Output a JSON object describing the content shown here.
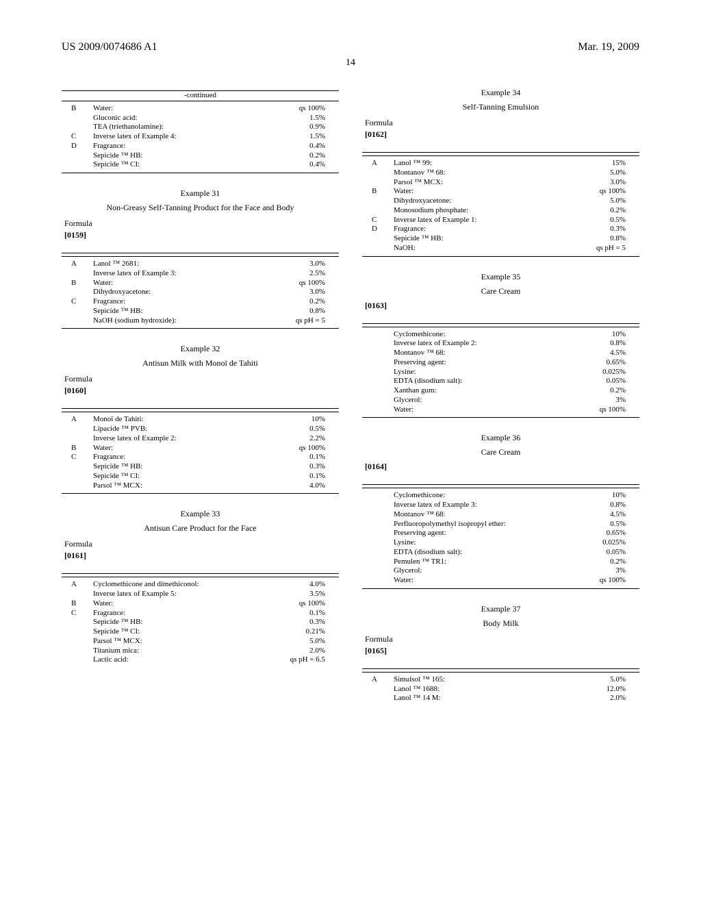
{
  "header": {
    "left": "US 2009/0074686 A1",
    "right": "Mar. 19, 2009",
    "page": "14"
  },
  "labels": {
    "formula": "Formula",
    "continued": "-continued"
  },
  "left": {
    "table_cont": {
      "rows": [
        {
          "p": "B",
          "n": "Water:",
          "v": "qs 100%"
        },
        {
          "p": "",
          "n": "Gluconic acid:",
          "v": "1.5%"
        },
        {
          "p": "",
          "n": "TEA (triethanolamine):",
          "v": "0.9%"
        },
        {
          "p": "C",
          "n": "Inverse latex of Example 4:",
          "v": "1.5%"
        },
        {
          "p": "D",
          "n": "Fragrance:",
          "v": "0.4%"
        },
        {
          "p": "",
          "n": "Sepicide ™ HB:",
          "v": "0.2%"
        },
        {
          "p": "",
          "n": "Sepicide ™ CI:",
          "v": "0.4%"
        }
      ]
    },
    "ex31": {
      "title": "Example 31",
      "sub": "Non-Greasy Self-Tanning Product for the Face and Body",
      "para": "[0159]",
      "rows": [
        {
          "p": "A",
          "n": "Lanol ™ 2681:",
          "v": "3.0%"
        },
        {
          "p": "",
          "n": "Inverse latex of Example 3:",
          "v": "2.5%"
        },
        {
          "p": "B",
          "n": "Water:",
          "v": "qs 100%"
        },
        {
          "p": "",
          "n": "Dihydroxyacetone:",
          "v": "3.0%"
        },
        {
          "p": "C",
          "n": "Fragrance:",
          "v": "0.2%"
        },
        {
          "p": "",
          "n": "Sepicide ™ HB:",
          "v": "0.8%"
        },
        {
          "p": "",
          "n": "NaOH (sodium hydroxide):",
          "v": "qs pH = 5"
        }
      ]
    },
    "ex32": {
      "title": "Example 32",
      "sub": "Antisun Milk with Monoï de Tahiti",
      "para": "[0160]",
      "rows": [
        {
          "p": "A",
          "n": "Monoï de Tahiti:",
          "v": "10%"
        },
        {
          "p": "",
          "n": "Lipacide ™ PVB:",
          "v": "0.5%"
        },
        {
          "p": "",
          "n": "Inverse latex of Example 2:",
          "v": "2.2%"
        },
        {
          "p": "B",
          "n": "Water:",
          "v": "qs 100%"
        },
        {
          "p": "C",
          "n": "Fragrance:",
          "v": "0.1%"
        },
        {
          "p": "",
          "n": "Sepicide ™ HB:",
          "v": "0.3%"
        },
        {
          "p": "",
          "n": "Sepicide ™ CI:",
          "v": "0.1%"
        },
        {
          "p": "",
          "n": "Parsol ™ MCX:",
          "v": "4.0%"
        }
      ]
    },
    "ex33": {
      "title": "Example 33",
      "sub": "Antisun Care Product for the Face",
      "para": "[0161]",
      "rows": [
        {
          "p": "A",
          "n": "Cyclomethicone and dimethiconol:",
          "v": "4.0%"
        },
        {
          "p": "",
          "n": "Inverse latex of Example 5:",
          "v": "3.5%"
        },
        {
          "p": "B",
          "n": "Water:",
          "v": "qs 100%"
        },
        {
          "p": "C",
          "n": "Fragrance:",
          "v": "0.1%"
        },
        {
          "p": "",
          "n": "Sepicide ™ HB:",
          "v": "0.3%"
        },
        {
          "p": "",
          "n": "Sepicide ™ CI:",
          "v": "0.21%"
        },
        {
          "p": "",
          "n": "Parsol ™ MCX:",
          "v": "5.0%"
        },
        {
          "p": "",
          "n": "Titanium mica:",
          "v": "2.0%"
        },
        {
          "p": "",
          "n": "Lactic acid:",
          "v": "qs pH = 6.5"
        }
      ]
    }
  },
  "right": {
    "ex34": {
      "title": "Example 34",
      "sub": "Self-Tanning Emulsion",
      "para": "[0162]",
      "rows": [
        {
          "p": "A",
          "n": "Lanol ™ 99:",
          "v": "15%"
        },
        {
          "p": "",
          "n": "Montanov ™ 68:",
          "v": "5.0%"
        },
        {
          "p": "",
          "n": "Parsol ™ MCX:",
          "v": "3.0%"
        },
        {
          "p": "B",
          "n": "Water:",
          "v": "qs 100%"
        },
        {
          "p": "",
          "n": "Dihydroxyacetone:",
          "v": "5.0%"
        },
        {
          "p": "",
          "n": "Monosodium phosphate:",
          "v": "0.2%"
        },
        {
          "p": "C",
          "n": "Inverse latex of Example 1:",
          "v": "0.5%"
        },
        {
          "p": "D",
          "n": "Fragrance:",
          "v": "0.3%"
        },
        {
          "p": "",
          "n": "Sepicide ™ HB:",
          "v": "0.8%"
        },
        {
          "p": "",
          "n": "NaOH:",
          "v": "qs pH = 5"
        }
      ]
    },
    "ex35": {
      "title": "Example 35",
      "sub": "Care Cream",
      "para": "[0163]",
      "rows": [
        {
          "p": "",
          "n": "Cyclomethicone:",
          "v": "10%"
        },
        {
          "p": "",
          "n": "Inverse latex of Example 2:",
          "v": "0.8%"
        },
        {
          "p": "",
          "n": "Montanov ™ 68:",
          "v": "4.5%"
        },
        {
          "p": "",
          "n": "Preserving agent:",
          "v": "0.65%"
        },
        {
          "p": "",
          "n": "Lysine:",
          "v": "0.025%"
        },
        {
          "p": "",
          "n": "EDTA (disodium salt):",
          "v": "0.05%"
        },
        {
          "p": "",
          "n": "Xanthan gum:",
          "v": "0.2%"
        },
        {
          "p": "",
          "n": "Glycerol:",
          "v": "3%"
        },
        {
          "p": "",
          "n": "Water:",
          "v": "qs 100%"
        }
      ]
    },
    "ex36": {
      "title": "Example 36",
      "sub": "Care Cream",
      "para": "[0164]",
      "rows": [
        {
          "p": "",
          "n": "Cyclomethicone:",
          "v": "10%"
        },
        {
          "p": "",
          "n": "Inverse latex of Example 3:",
          "v": "0.8%"
        },
        {
          "p": "",
          "n": "Montanov ™ 68:",
          "v": "4.5%"
        },
        {
          "p": "",
          "n": "Perfluoropolymethyl isopropyl ether:",
          "v": "0.5%"
        },
        {
          "p": "",
          "n": "Preserving agent:",
          "v": "0.65%"
        },
        {
          "p": "",
          "n": "Lysine:",
          "v": "0.025%"
        },
        {
          "p": "",
          "n": "EDTA (disodium salt):",
          "v": "0.05%"
        },
        {
          "p": "",
          "n": "Pemulen ™ TR1:",
          "v": "0.2%"
        },
        {
          "p": "",
          "n": "Glycerol:",
          "v": "3%"
        },
        {
          "p": "",
          "n": "Water:",
          "v": "qs 100%"
        }
      ]
    },
    "ex37": {
      "title": "Example 37",
      "sub": "Body Milk",
      "para": "[0165]",
      "rows": [
        {
          "p": "A",
          "n": "Simulsol ™ 165:",
          "v": "5.0%"
        },
        {
          "p": "",
          "n": "Lanol ™ 1688:",
          "v": "12.0%"
        },
        {
          "p": "",
          "n": "Lanol ™ 14 M:",
          "v": "2.0%"
        }
      ]
    }
  }
}
